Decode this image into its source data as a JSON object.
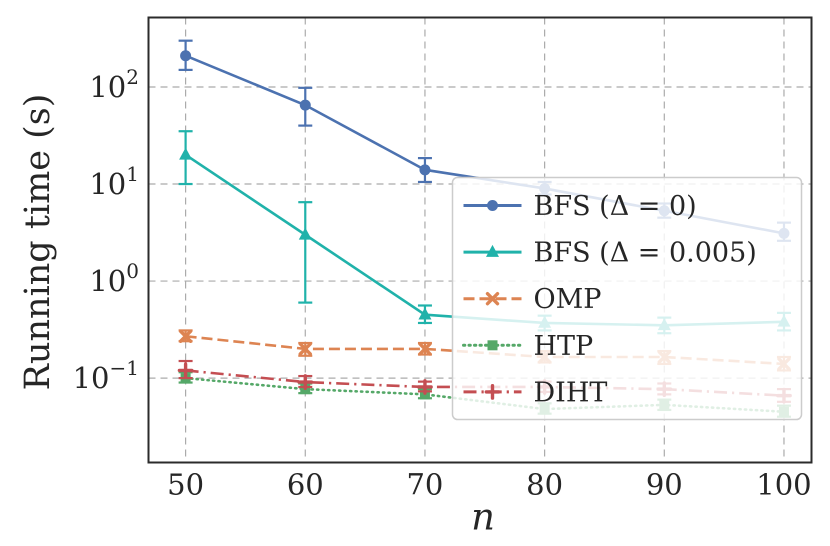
{
  "chart_data": {
    "type": "line",
    "title": "",
    "xlabel": "n",
    "ylabel": "Running time (s)",
    "x_scale": "linear",
    "y_scale": "log",
    "xlim": [
      46.9,
      102.3
    ],
    "ylim": [
      0.0135,
      520
    ],
    "x_ticks": [
      50,
      60,
      70,
      80,
      90,
      100
    ],
    "y_ticks": [
      0.1,
      1,
      10,
      100
    ],
    "grid": true,
    "legend_position": "center right",
    "legend_alpha": 0.82,
    "x": [
      50,
      60,
      70,
      80,
      90,
      100
    ],
    "series": [
      {
        "name": "BFS (Δ = 0)",
        "color": "#4c72b0",
        "marker": "circle",
        "linestyle": "solid",
        "values": [
          210,
          65,
          14,
          9,
          5.3,
          3.1
        ],
        "err_low": [
          150,
          40,
          10.5,
          7.8,
          4.5,
          2.6
        ],
        "err_high": [
          300,
          98,
          18.5,
          10.5,
          6.3,
          4.0
        ]
      },
      {
        "name": "BFS (Δ = 0.005)",
        "color": "#20b2aa",
        "marker": "triangle",
        "linestyle": "solid",
        "values": [
          20,
          3,
          0.45,
          0.37,
          0.35,
          0.38
        ],
        "err_low": [
          10,
          0.6,
          0.37,
          0.31,
          0.29,
          0.31
        ],
        "err_high": [
          35,
          6.5,
          0.56,
          0.44,
          0.42,
          0.47
        ]
      },
      {
        "name": "OMP",
        "color": "#dd8452",
        "marker": "x",
        "linestyle": "dashed",
        "values": [
          0.27,
          0.2,
          0.2,
          0.165,
          0.165,
          0.14
        ],
        "err_low": [
          0.24,
          0.17,
          0.175,
          0.145,
          0.14,
          0.12
        ],
        "err_high": [
          0.31,
          0.23,
          0.23,
          0.19,
          0.19,
          0.165
        ]
      },
      {
        "name": "HTP",
        "color": "#55a868",
        "marker": "square",
        "linestyle": "dotted",
        "values": [
          0.1,
          0.077,
          0.068,
          0.048,
          0.053,
          0.045
        ],
        "err_low": [
          0.09,
          0.07,
          0.062,
          0.043,
          0.047,
          0.04
        ],
        "err_high": [
          0.115,
          0.088,
          0.077,
          0.055,
          0.06,
          0.052
        ]
      },
      {
        "name": "DIHT",
        "color": "#c44e52",
        "marker": "plus",
        "linestyle": "dashdot",
        "values": [
          0.12,
          0.091,
          0.081,
          0.081,
          0.077,
          0.066
        ],
        "err_low": [
          0.1,
          0.081,
          0.073,
          0.072,
          0.068,
          0.057
        ],
        "err_high": [
          0.15,
          0.105,
          0.092,
          0.092,
          0.088,
          0.077
        ]
      }
    ]
  }
}
